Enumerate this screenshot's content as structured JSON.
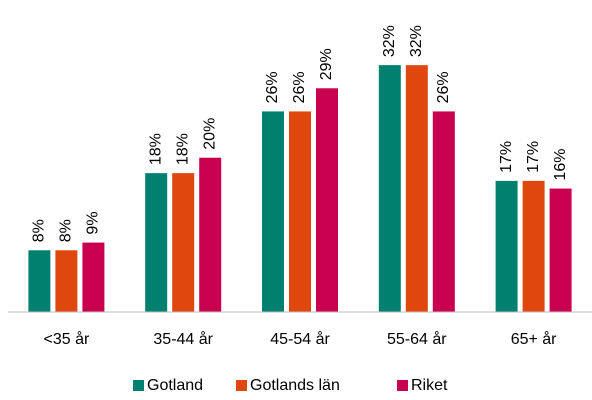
{
  "chart_data": {
    "type": "bar",
    "categories": [
      "<35 år",
      "35-44 år",
      "45-54 år",
      "55-64 år",
      "65+ år"
    ],
    "series": [
      {
        "name": "Gotland",
        "color": "#00806e",
        "values": [
          8,
          18,
          26,
          32,
          17
        ],
        "value_labels": [
          "8%",
          "18%",
          "26%",
          "32%",
          "17%"
        ]
      },
      {
        "name": "Gotlands län",
        "color": "#e0470e",
        "values": [
          8,
          18,
          26,
          32,
          17
        ],
        "value_labels": [
          "8%",
          "18%",
          "26%",
          "32%",
          "17%"
        ]
      },
      {
        "name": "Riket",
        "color": "#c8004f",
        "values": [
          9,
          20,
          29,
          26,
          16
        ],
        "value_labels": [
          "9%",
          "20%",
          "29%",
          "26%",
          "16%"
        ]
      }
    ],
    "ylim": [
      0,
      35
    ],
    "legend": "bottom"
  }
}
